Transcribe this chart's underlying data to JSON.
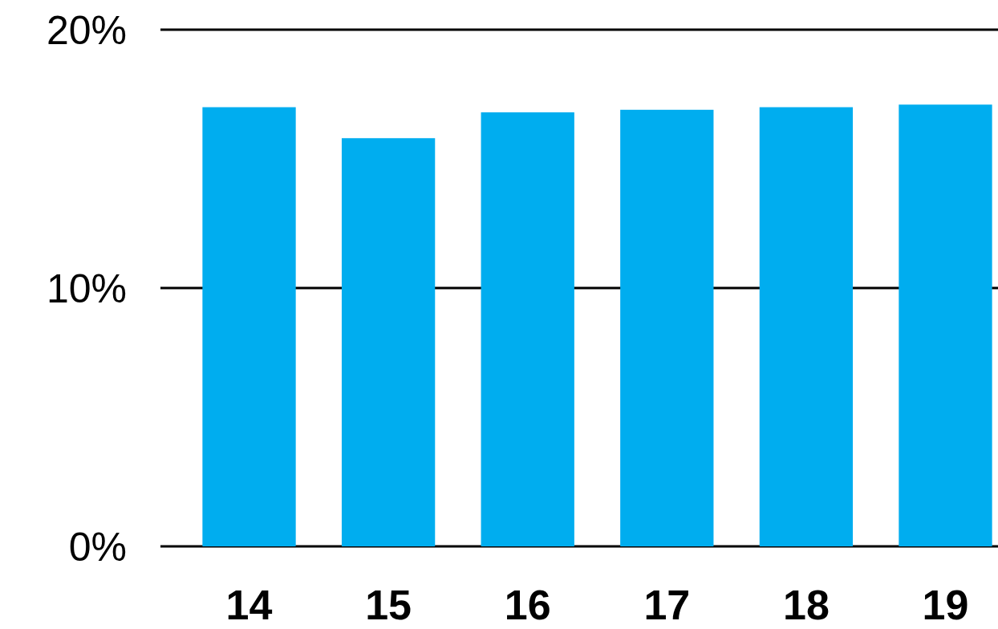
{
  "chart_data": {
    "type": "bar",
    "categories": [
      "14",
      "15",
      "16",
      "17",
      "18",
      "19"
    ],
    "values": [
      17.0,
      15.8,
      16.8,
      16.9,
      17.0,
      17.1
    ],
    "color": "#00adef",
    "ylim": [
      0,
      20
    ],
    "yticks": [
      {
        "value": 0,
        "label": "0%"
      },
      {
        "value": 10,
        "label": "10%"
      },
      {
        "value": 20,
        "label": "20%"
      }
    ],
    "grid": "y"
  }
}
